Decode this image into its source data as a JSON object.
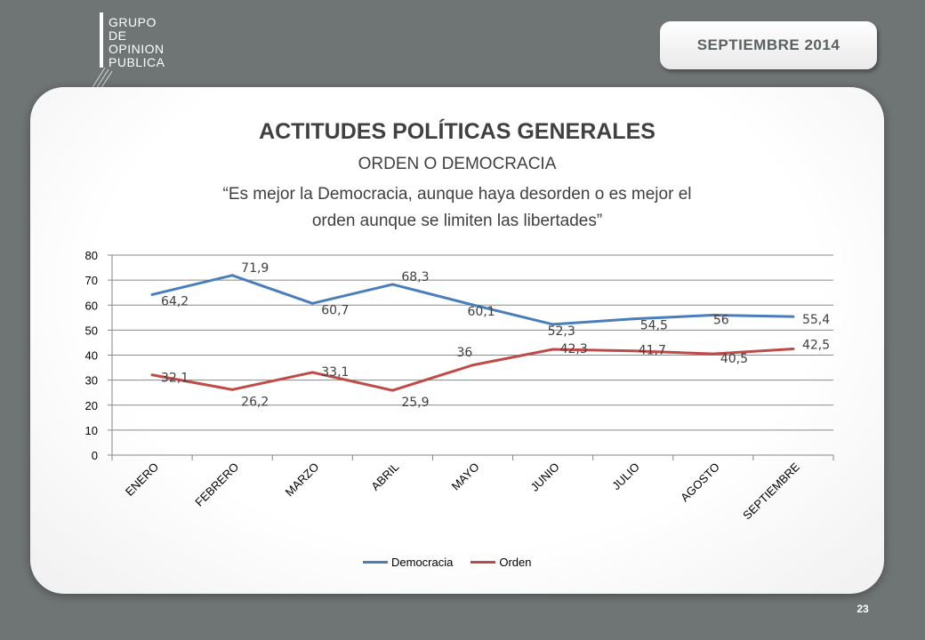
{
  "logo": {
    "lines": [
      "GRUPO",
      "DE",
      "OPINION",
      "PUBLICA"
    ]
  },
  "date_badge": "SEPTIEMBRE  2014",
  "page_number": "23",
  "chart_data": {
    "type": "line",
    "title": "ACTITUDES POLÍTICAS GENERALES",
    "subtitle": "ORDEN O DEMOCRACIA",
    "question_lines": [
      "“Es mejor la Democracia, aunque haya desorden o es mejor el",
      "orden aunque se limiten las libertades”"
    ],
    "categories": [
      "ENERO",
      "FEBRERO",
      "MARZO",
      "ABRIL",
      "MAYO",
      "JUNIO",
      "JULIO",
      "AGOSTO",
      "SEPTIEMBRE"
    ],
    "series": [
      {
        "name": "Democracia",
        "color": "#4a7ebb",
        "values": [
          64.2,
          71.9,
          60.7,
          68.3,
          60.1,
          52.3,
          54.5,
          56,
          55.4
        ],
        "labels": [
          "64,2",
          "71,9",
          "60,7",
          "68,3",
          "60,1",
          "52,3",
          "54,5",
          "56",
          "55,4"
        ]
      },
      {
        "name": "Orden",
        "color": "#be4b48",
        "values": [
          32.1,
          26.2,
          33.1,
          25.9,
          36,
          42.3,
          41.7,
          40.5,
          42.5
        ],
        "labels": [
          "32,1",
          "26,2",
          "33,1",
          "25,9",
          "36",
          "42,3",
          "41,7",
          "40,5",
          "42,5"
        ]
      }
    ],
    "ylim": [
      0,
      80
    ],
    "yticks": [
      0,
      10,
      20,
      30,
      40,
      50,
      60,
      70,
      80
    ],
    "xlabel": "",
    "ylabel": "",
    "grid": true,
    "legend": "bottom"
  }
}
